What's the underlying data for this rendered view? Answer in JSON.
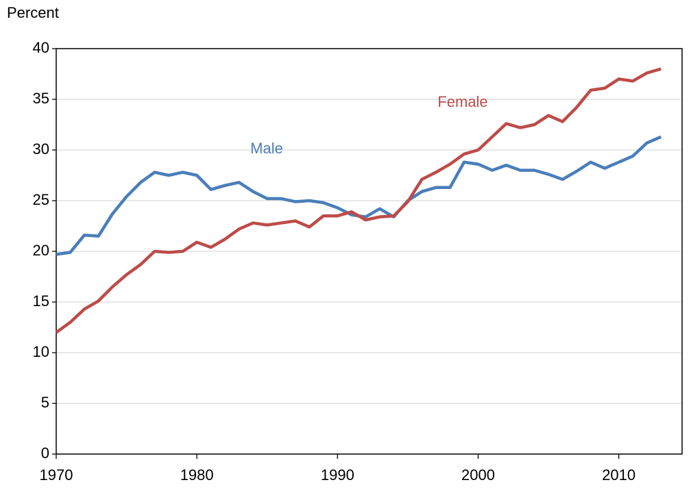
{
  "chart_data": {
    "type": "line",
    "y_axis_label": "Percent",
    "x": [
      1970,
      1971,
      1972,
      1973,
      1974,
      1975,
      1976,
      1977,
      1978,
      1979,
      1980,
      1981,
      1982,
      1983,
      1984,
      1985,
      1986,
      1987,
      1988,
      1989,
      1990,
      1991,
      1992,
      1993,
      1994,
      1995,
      1996,
      1997,
      1998,
      1999,
      2000,
      2001,
      2002,
      2003,
      2004,
      2005,
      2006,
      2007,
      2008,
      2009,
      2010,
      2011,
      2012,
      2013
    ],
    "series": [
      {
        "name": "Male",
        "color": "#4a7ebb",
        "values": [
          19.7,
          19.9,
          21.6,
          21.5,
          23.7,
          25.4,
          26.8,
          27.8,
          27.5,
          27.8,
          27.5,
          26.1,
          26.5,
          26.8,
          25.9,
          25.2,
          25.2,
          24.9,
          25.0,
          24.8,
          24.3,
          23.6,
          23.4,
          24.2,
          23.4,
          25.0,
          25.9,
          26.3,
          26.3,
          28.8,
          28.6,
          28.0,
          28.5,
          28.0,
          28.0,
          27.6,
          27.1,
          27.9,
          28.8,
          28.2,
          28.8,
          29.4,
          30.7,
          31.3
        ]
      },
      {
        "name": "Female",
        "color": "#be4b48",
        "values": [
          12.0,
          13.0,
          14.3,
          15.1,
          16.5,
          17.7,
          18.7,
          20.0,
          19.9,
          20.0,
          20.9,
          20.4,
          21.2,
          22.2,
          22.8,
          22.6,
          22.8,
          23.0,
          22.4,
          23.5,
          23.5,
          23.9,
          23.1,
          23.4,
          23.5,
          24.9,
          27.1,
          27.8,
          28.6,
          29.6,
          30.0,
          31.3,
          32.6,
          32.2,
          32.5,
          33.4,
          32.8,
          34.2,
          35.9,
          36.1,
          37.0,
          36.8,
          37.6,
          38.0
        ]
      }
    ],
    "xlim": [
      1970,
      2014.5
    ],
    "xticks": [
      1970,
      1980,
      1990,
      2000,
      2010
    ],
    "ylim": [
      0,
      40
    ],
    "yticks": [
      0,
      5,
      10,
      15,
      20,
      25,
      30,
      35,
      40
    ],
    "grid": true
  }
}
